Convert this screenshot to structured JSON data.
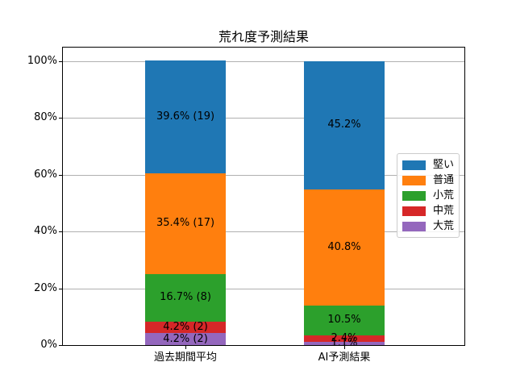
{
  "chart_data": {
    "type": "bar",
    "stacked": true,
    "title": "荒れ度予測結果",
    "categories": [
      "過去期間平均",
      "AI予測結果"
    ],
    "series": [
      {
        "name": "堅い",
        "color": "#1f77b4",
        "values": [
          39.6,
          45.2
        ],
        "bar_labels": [
          "39.6% (19)",
          "45.2%"
        ]
      },
      {
        "name": "普通",
        "color": "#ff7f0e",
        "values": [
          35.4,
          40.8
        ],
        "bar_labels": [
          "35.4% (17)",
          "40.8%"
        ]
      },
      {
        "name": "小荒",
        "color": "#2ca02c",
        "values": [
          16.7,
          10.5
        ],
        "bar_labels": [
          "16.7% (8)",
          "10.5%"
        ]
      },
      {
        "name": "中荒",
        "color": "#d62728",
        "values": [
          4.2,
          2.4
        ],
        "bar_labels": [
          "4.2% (2)",
          "2.4%"
        ]
      },
      {
        "name": "大荒",
        "color": "#9467bd",
        "values": [
          4.2,
          1.1
        ],
        "bar_labels": [
          "4.2% (2)",
          "1.1%"
        ]
      }
    ],
    "stack_order": "first-series-on-top",
    "yticks": [
      {
        "value": 0,
        "label": "0%"
      },
      {
        "value": 20,
        "label": "20%"
      },
      {
        "value": 40,
        "label": "40%"
      },
      {
        "value": 60,
        "label": "60%"
      },
      {
        "value": 80,
        "label": "80%"
      },
      {
        "value": 100,
        "label": "100%"
      }
    ],
    "ylim": [
      0,
      105
    ],
    "grid": "horizontal",
    "legend_position": "center-right",
    "colors": {
      "grid": "#b0b0b0",
      "axis": "#000000",
      "background": "#ffffff",
      "legend_border": "#cccccc",
      "label_text": "#000000"
    }
  }
}
